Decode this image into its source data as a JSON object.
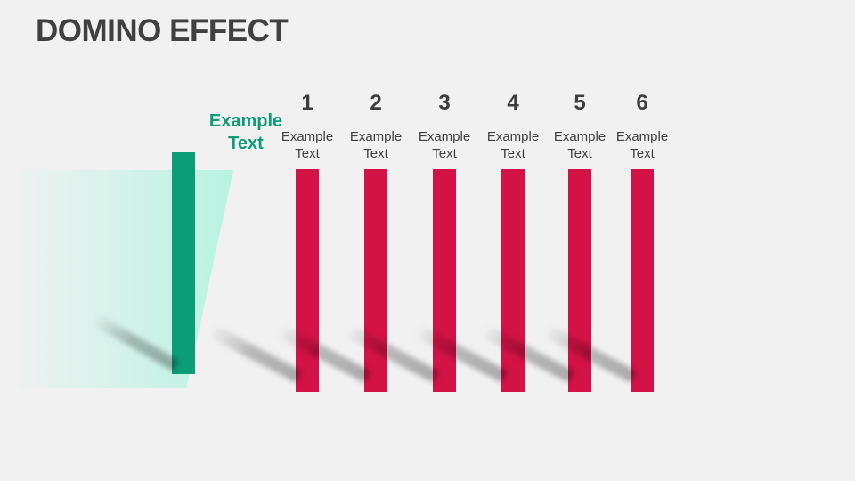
{
  "title": "DOMINO EFFECT",
  "lead_domino": {
    "label_line1": "Example",
    "label_line2": "Text"
  },
  "dominoes": [
    {
      "number": "1",
      "label_line1": "Example",
      "label_line2": "Text"
    },
    {
      "number": "2",
      "label_line1": "Example",
      "label_line2": "Text"
    },
    {
      "number": "3",
      "label_line1": "Example",
      "label_line2": "Text"
    },
    {
      "number": "4",
      "label_line1": "Example",
      "label_line2": "Text"
    },
    {
      "number": "5",
      "label_line1": "Example",
      "label_line2": "Text"
    },
    {
      "number": "6",
      "label_line1": "Example",
      "label_line2": "Text"
    }
  ],
  "colors": {
    "background": "#F1F1F2",
    "title_text": "#404040",
    "domino_green": "#0B9D77",
    "green_label_text": "#0D9B78",
    "trail_green": "#B7F3E0",
    "domino_red": "#D31245",
    "number_text": "#3D3D3D",
    "label_text": "#3F3F3F"
  }
}
